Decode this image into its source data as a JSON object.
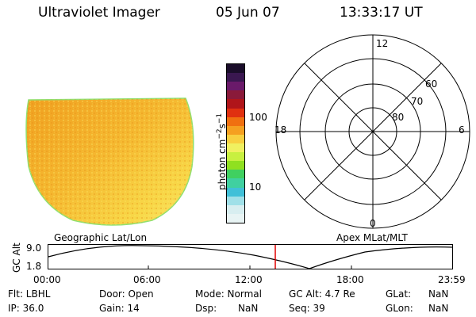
{
  "header": {
    "title": "Ultraviolet Imager",
    "date": "05 Jun 07",
    "time": "13:33:17 UT"
  },
  "colorbar": {
    "unit": "photon cm",
    "unit_exp1": "−2",
    "unit_mid": "s",
    "unit_exp2": "−1",
    "ticks": [
      "100",
      "10"
    ],
    "colors": [
      "#1a0d2a",
      "#3a1750",
      "#6a1a6a",
      "#8a1a3a",
      "#b0151a",
      "#e03010",
      "#f07010",
      "#f5a020",
      "#f8d040",
      "#f0f060",
      "#c8f040",
      "#90e020",
      "#40d060",
      "#40d0a0",
      "#40c0d8",
      "#a0e0e8",
      "#d8eef0",
      "#e8f4f4"
    ]
  },
  "polar": {
    "top_label": "12",
    "bottom_label": "0",
    "left_label": "18",
    "right_label": "6",
    "lat_labels": [
      "80",
      "70",
      "60"
    ]
  },
  "plot": {
    "left_label": "Geographic Lat/Lon",
    "right_label": "Apex MLat/MLT",
    "y_axis_label": "GC Alt",
    "y_ticks": [
      "9.0",
      "1.8"
    ],
    "x_ticks": [
      "00:00",
      "06:00",
      "12:00",
      "18:00",
      "23:59"
    ],
    "marker_color": "#e00000"
  },
  "info": {
    "flt": "Flt: LBHL",
    "ip": "IP: 36.0",
    "door": "Door: Open",
    "gain": "Gain: 14",
    "mode": "Mode: Normal",
    "dsp_label": "Dsp:",
    "dsp_value": "NaN",
    "gcalt": "GC Alt: 4.7 Re",
    "seq": "Seq: 39",
    "glat_label": "GLat:",
    "glat_value": "NaN",
    "glon_label": "GLon:",
    "glon_value": "NaN"
  }
}
